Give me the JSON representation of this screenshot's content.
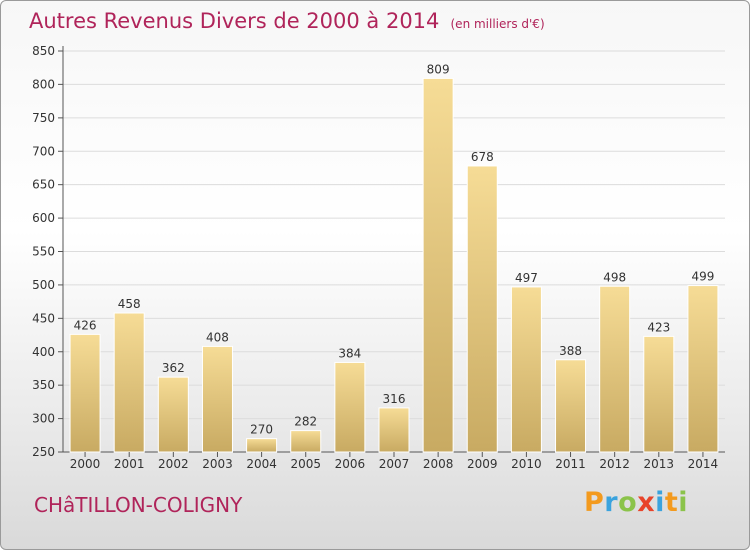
{
  "title": "Autres Revenus Divers de 2000 à 2014",
  "unit_note": "(en milliers d'€)",
  "commune": "CHâTILLON-COLIGNY",
  "logo": {
    "text": "Proxiti",
    "letters": [
      "P",
      "r",
      "o",
      "x",
      "i",
      "t",
      "i"
    ],
    "colors": [
      "#f39a1e",
      "#3aa3de",
      "#8bc34a",
      "#e8442a",
      "#3aa3de",
      "#f39a1e",
      "#8bc34a"
    ]
  },
  "chart_data": {
    "type": "bar",
    "categories": [
      "2000",
      "2001",
      "2002",
      "2003",
      "2004",
      "2005",
      "2006",
      "2007",
      "2008",
      "2009",
      "2010",
      "2011",
      "2012",
      "2013",
      "2014"
    ],
    "values": [
      426,
      458,
      362,
      408,
      270,
      282,
      384,
      316,
      809,
      678,
      497,
      388,
      498,
      423,
      499
    ],
    "ylim": [
      250,
      850
    ],
    "yticks": [
      250,
      300,
      350,
      400,
      450,
      500,
      550,
      600,
      650,
      700,
      750,
      800,
      850
    ],
    "grid": "horizontal",
    "colors": {
      "bar_light": "#f6dc96",
      "bar_dark": "#c8aa62",
      "title": "#b0245a"
    }
  }
}
